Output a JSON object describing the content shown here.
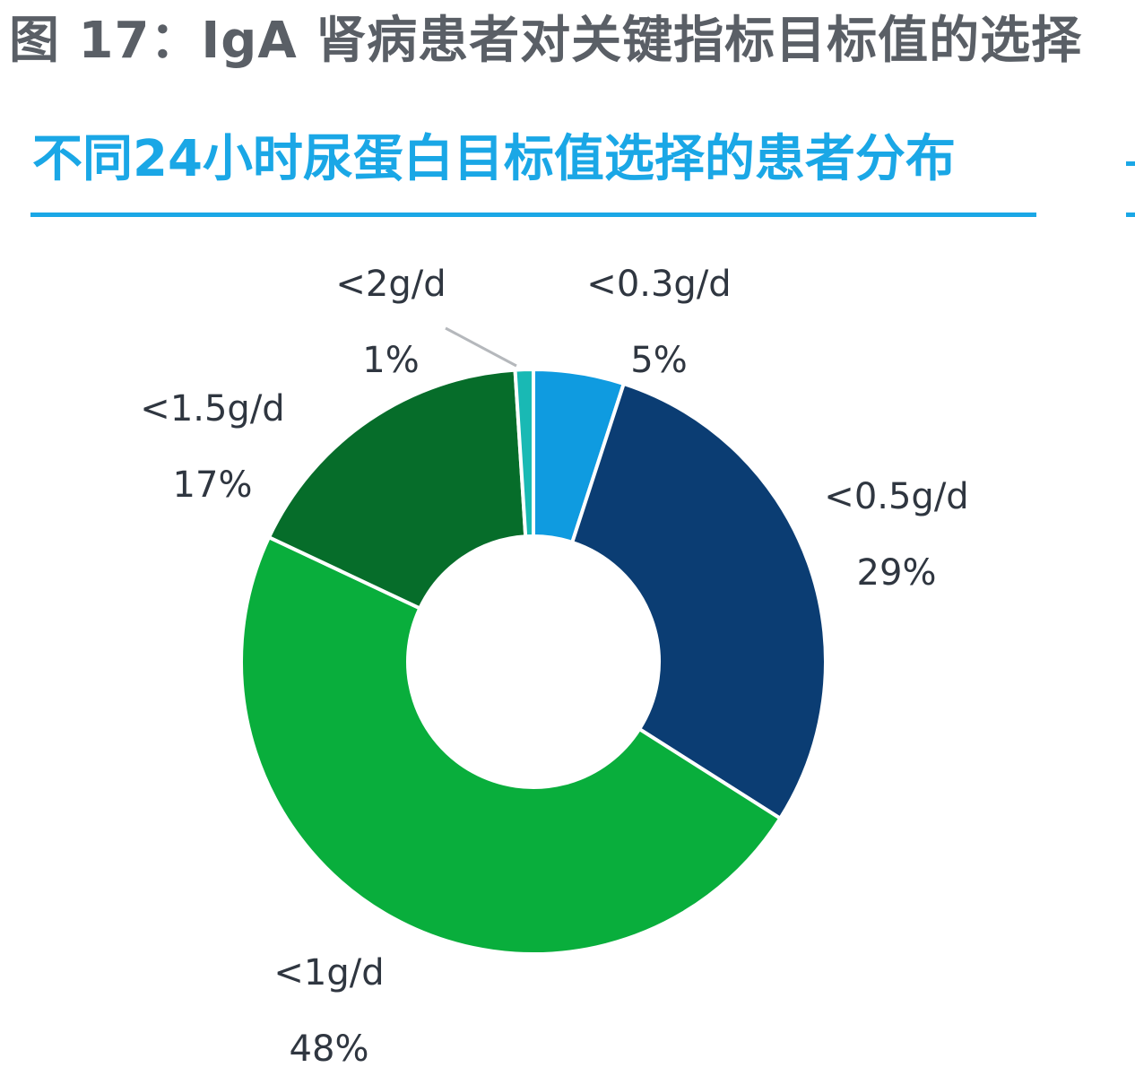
{
  "figure_title": "图 17：IgA 肾病患者对关键指标目标值的选择",
  "chart_data": {
    "type": "pie",
    "donut": true,
    "title": "不同24小时尿蛋白目标值选择的患者分布",
    "legend": "none",
    "slices": [
      {
        "label": "<0.3g/d",
        "value": 5,
        "value_label": "5%",
        "color": "#0f9be0"
      },
      {
        "label": "<0.5g/d",
        "value": 29,
        "value_label": "29%",
        "color": "#0b3d73"
      },
      {
        "label": "<1g/d",
        "value": 48,
        "value_label": "48%",
        "color": "#09ae3c"
      },
      {
        "label": "<1.5g/d",
        "value": 17,
        "value_label": "17%",
        "color": "#066d2a"
      },
      {
        "label": "<2g/d",
        "value": 1,
        "value_label": "1%",
        "color": "#19b9b4"
      }
    ]
  }
}
